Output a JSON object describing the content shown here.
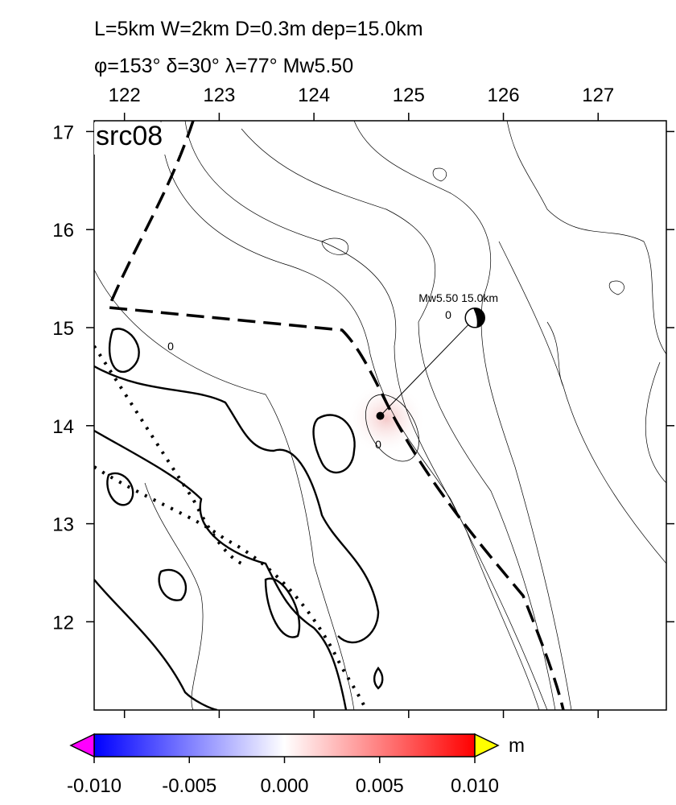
{
  "header": {
    "line1": "L=5km W=2km D=0.3m dep=15.0km",
    "line2": "φ=153° δ=30° λ=77° Mw5.50"
  },
  "map": {
    "label": "src08",
    "xlim": [
      121.68,
      127.72
    ],
    "ylim": [
      11.1,
      17.11
    ],
    "xticks": [
      122,
      123,
      124,
      125,
      126,
      127
    ],
    "yticks": [
      12,
      13,
      14,
      15,
      16,
      17
    ],
    "epicenter": {
      "lon": 124.7,
      "lat": 14.1
    },
    "mechanism": {
      "lon": 125.7,
      "lat": 15.1,
      "label": "Mw5.50  15.0km"
    },
    "contour_labels": [
      "0",
      "0",
      "0"
    ]
  },
  "colorbar": {
    "range": [
      -0.01,
      0.01
    ],
    "ticks": [
      {
        "value": -0.01,
        "label": "-0.010"
      },
      {
        "value": -0.005,
        "label": "-0.005"
      },
      {
        "value": 0,
        "label": "0.000"
      },
      {
        "value": 0.005,
        "label": "0.005"
      },
      {
        "value": 0.01,
        "label": "0.010"
      }
    ],
    "colors": [
      "#0000ff",
      "#ffffff",
      "#ff0000"
    ],
    "low_color": "#ff00ff",
    "high_color": "#ffff00",
    "unit": "m"
  }
}
